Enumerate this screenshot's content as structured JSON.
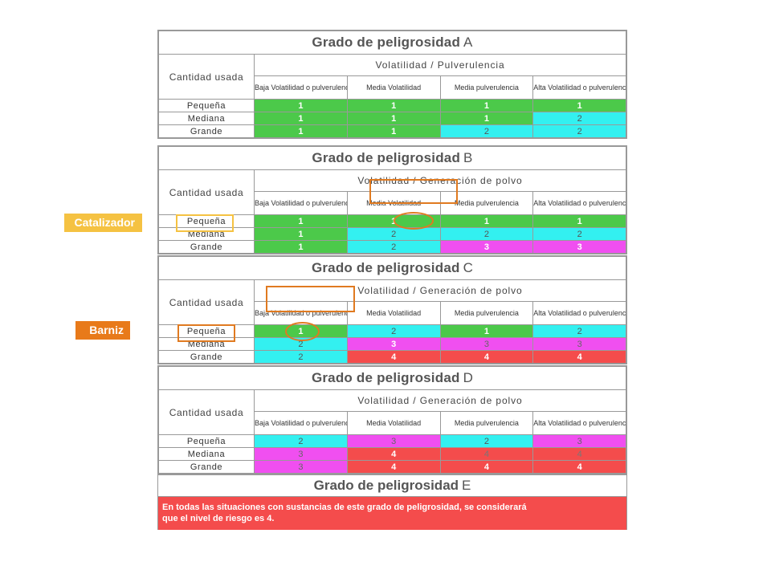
{
  "tables": [
    {
      "title": "Grado de peligrosidad",
      "letter": "A",
      "cantidad_label": "Cantidad usada",
      "vol_header": "Volatilidad / Pulverulencia",
      "columns": [
        "Baja Volatilidad o pulverulencia",
        "Media Volatilidad",
        "Media pulverulencia",
        "Alta Volatilidad o pulverulencia"
      ],
      "rows": [
        {
          "label": "Pequeña",
          "cells": [
            {
              "v": "1",
              "c": "c1"
            },
            {
              "v": "1",
              "c": "c1"
            },
            {
              "v": "1",
              "c": "c1"
            },
            {
              "v": "1",
              "c": "c1"
            }
          ]
        },
        {
          "label": "Mediana",
          "cells": [
            {
              "v": "1",
              "c": "c1"
            },
            {
              "v": "1",
              "c": "c1"
            },
            {
              "v": "1",
              "c": "c1"
            },
            {
              "v": "2",
              "c": "c2"
            }
          ]
        },
        {
          "label": "Grande",
          "cells": [
            {
              "v": "1",
              "c": "c1"
            },
            {
              "v": "1",
              "c": "c1"
            },
            {
              "v": "2",
              "c": "c2"
            },
            {
              "v": "2",
              "c": "c2"
            }
          ]
        }
      ]
    },
    {
      "title": "Grado de peligrosidad",
      "letter": "B",
      "cantidad_label": "Cantidad usada",
      "vol_header": "Volatilidad / Generación de polvo",
      "columns": [
        "Baja Volatilidad o pulverulencia",
        "Media Volatilidad",
        "Media pulverulencia",
        "Alta Volatilidad o pulverulencia"
      ],
      "rows": [
        {
          "label": "Pequeña",
          "cells": [
            {
              "v": "1",
              "c": "c1"
            },
            {
              "v": "1",
              "c": "c1"
            },
            {
              "v": "1",
              "c": "c1"
            },
            {
              "v": "1",
              "c": "c1"
            }
          ]
        },
        {
          "label": "Mediana",
          "cells": [
            {
              "v": "1",
              "c": "c1"
            },
            {
              "v": "2",
              "c": "c2"
            },
            {
              "v": "2",
              "c": "c2"
            },
            {
              "v": "2",
              "c": "c2"
            }
          ]
        },
        {
          "label": "Grande",
          "cells": [
            {
              "v": "1",
              "c": "c1"
            },
            {
              "v": "2",
              "c": "c2"
            },
            {
              "v": "3",
              "c": "c3"
            },
            {
              "v": "3",
              "c": "c3"
            }
          ]
        }
      ]
    },
    {
      "title": "Grado de peligrosidad",
      "letter": "C",
      "cantidad_label": "Cantidad usada",
      "vol_header": "Volatilidad / Generación de polvo",
      "columns": [
        "Baja Volatilidad o pulverulencia",
        "Media Volatilidad",
        "Media pulverulencia",
        "Alta Volatilidad o pulverulencia"
      ],
      "rows": [
        {
          "label": "Pequeña",
          "cells": [
            {
              "v": "1",
              "c": "c1"
            },
            {
              "v": "2",
              "c": "c2"
            },
            {
              "v": "1",
              "c": "c1"
            },
            {
              "v": "2",
              "c": "c2"
            }
          ]
        },
        {
          "label": "Mediana",
          "cells": [
            {
              "v": "2",
              "c": "c2"
            },
            {
              "v": "3",
              "c": "c3"
            },
            {
              "v": "3",
              "c": "c3n"
            },
            {
              "v": "3",
              "c": "c3n"
            }
          ]
        },
        {
          "label": "Grande",
          "cells": [
            {
              "v": "2",
              "c": "c2"
            },
            {
              "v": "4",
              "c": "c4"
            },
            {
              "v": "4",
              "c": "c4"
            },
            {
              "v": "4",
              "c": "c4"
            }
          ]
        }
      ]
    },
    {
      "title": "Grado de peligrosidad",
      "letter": "D",
      "cantidad_label": "Cantidad usada",
      "vol_header": "Volatilidad / Generación de polvo",
      "columns": [
        "Baja Volatilidad o pulverulencia",
        "Media Volatilidad",
        "Media pulverulencia",
        "Alta Volatilidad o pulverulencia"
      ],
      "rows": [
        {
          "label": "Pequeña",
          "cells": [
            {
              "v": "2",
              "c": "c2"
            },
            {
              "v": "3",
              "c": "c3n"
            },
            {
              "v": "2",
              "c": "c2"
            },
            {
              "v": "3",
              "c": "c3n"
            }
          ]
        },
        {
          "label": "Mediana",
          "cells": [
            {
              "v": "3",
              "c": "c3n"
            },
            {
              "v": "4",
              "c": "c4"
            },
            {
              "v": "4",
              "c": "c4n"
            },
            {
              "v": "4",
              "c": "c4n"
            }
          ]
        },
        {
          "label": "Grande",
          "cells": [
            {
              "v": "3",
              "c": "c3n"
            },
            {
              "v": "4",
              "c": "c4"
            },
            {
              "v": "4",
              "c": "c4"
            },
            {
              "v": "4",
              "c": "c4"
            }
          ]
        }
      ]
    }
  ],
  "table_e": {
    "title": "Grado de peligrosidad",
    "letter": "E",
    "text": "En todas las situaciones con sustancias de este grado de peligrosidad, se considerará\nque el nivel de riesgo es 4."
  },
  "labels": {
    "catalizador": "Catalizador",
    "barniz": "Barniz"
  },
  "colors": {
    "green": "#4cc94a",
    "cyan": "#33f0f0",
    "magenta": "#f04ff0",
    "red": "#f44c4c",
    "orange": "#e07a20",
    "yellow": "#f5c242"
  }
}
